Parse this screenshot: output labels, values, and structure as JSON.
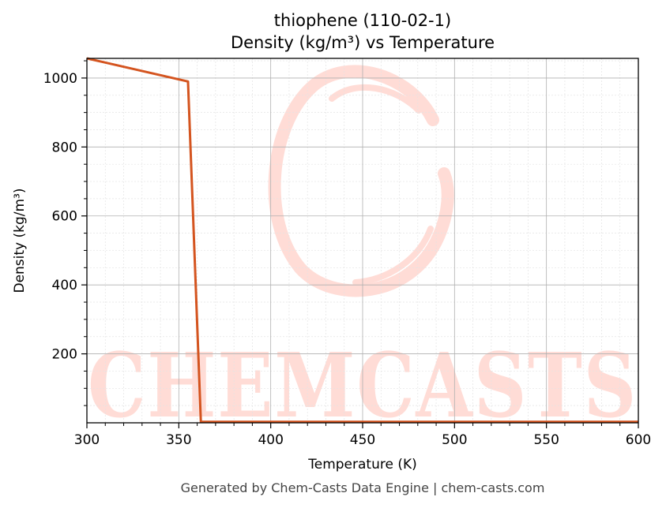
{
  "chart_data": {
    "type": "line",
    "title_line1": "thiophene (110-02-1)",
    "title_line2": "Density (kg/m³) vs Temperature",
    "xlabel": "Temperature (K)",
    "ylabel": "Density (kg/m³)",
    "xlim": [
      300,
      600
    ],
    "ylim": [
      0,
      1057
    ],
    "x_ticks": [
      300,
      350,
      400,
      450,
      500,
      550,
      600
    ],
    "y_ticks": [
      200,
      400,
      600,
      800,
      1000
    ],
    "grid": true,
    "series": [
      {
        "color": "#d4541f",
        "points": [
          [
            300,
            1057
          ],
          [
            355,
            990
          ],
          [
            362,
            3
          ],
          [
            400,
            3
          ],
          [
            500,
            3
          ],
          [
            600,
            3
          ]
        ]
      }
    ]
  },
  "watermark": {
    "text": "CHEMCASTS",
    "color": "#ffdcd6"
  },
  "footer": "Generated by Chem-Casts Data Engine | chem-casts.com"
}
